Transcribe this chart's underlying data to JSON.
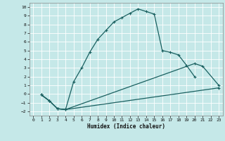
{
  "xlabel": "Humidex (Indice chaleur)",
  "background_color": "#c5e8e8",
  "grid_color": "#b0d0d0",
  "line_color": "#1a6060",
  "xlim": [
    -0.5,
    23.5
  ],
  "ylim": [
    -2.5,
    10.5
  ],
  "xticks": [
    0,
    1,
    2,
    3,
    4,
    5,
    6,
    7,
    8,
    9,
    10,
    11,
    12,
    13,
    14,
    15,
    16,
    17,
    18,
    19,
    20,
    21,
    22,
    23
  ],
  "yticks": [
    -2,
    -1,
    0,
    1,
    2,
    3,
    4,
    5,
    6,
    7,
    8,
    9,
    10
  ],
  "curve1_x": [
    1,
    2,
    3,
    4,
    5,
    6,
    7,
    8,
    9,
    10,
    11,
    12,
    13,
    14,
    15,
    16,
    17,
    18,
    19,
    20
  ],
  "curve1_y": [
    -0.1,
    -0.8,
    -1.7,
    -1.8,
    1.4,
    3.0,
    4.8,
    6.3,
    7.3,
    8.3,
    8.8,
    9.3,
    9.8,
    9.5,
    9.2,
    5.0,
    4.8,
    4.5,
    3.3,
    2.0
  ],
  "curve2_x": [
    1,
    2,
    3,
    4,
    20,
    21,
    23
  ],
  "curve2_y": [
    -0.1,
    -0.8,
    -1.7,
    -1.8,
    3.5,
    3.2,
    1.0
  ],
  "curve3_x": [
    1,
    2,
    3,
    4,
    23
  ],
  "curve3_y": [
    -0.1,
    -0.8,
    -1.7,
    -1.8,
    0.7
  ],
  "curve4_x": [
    4,
    23
  ],
  "curve4_y": [
    -1.8,
    1.0
  ]
}
